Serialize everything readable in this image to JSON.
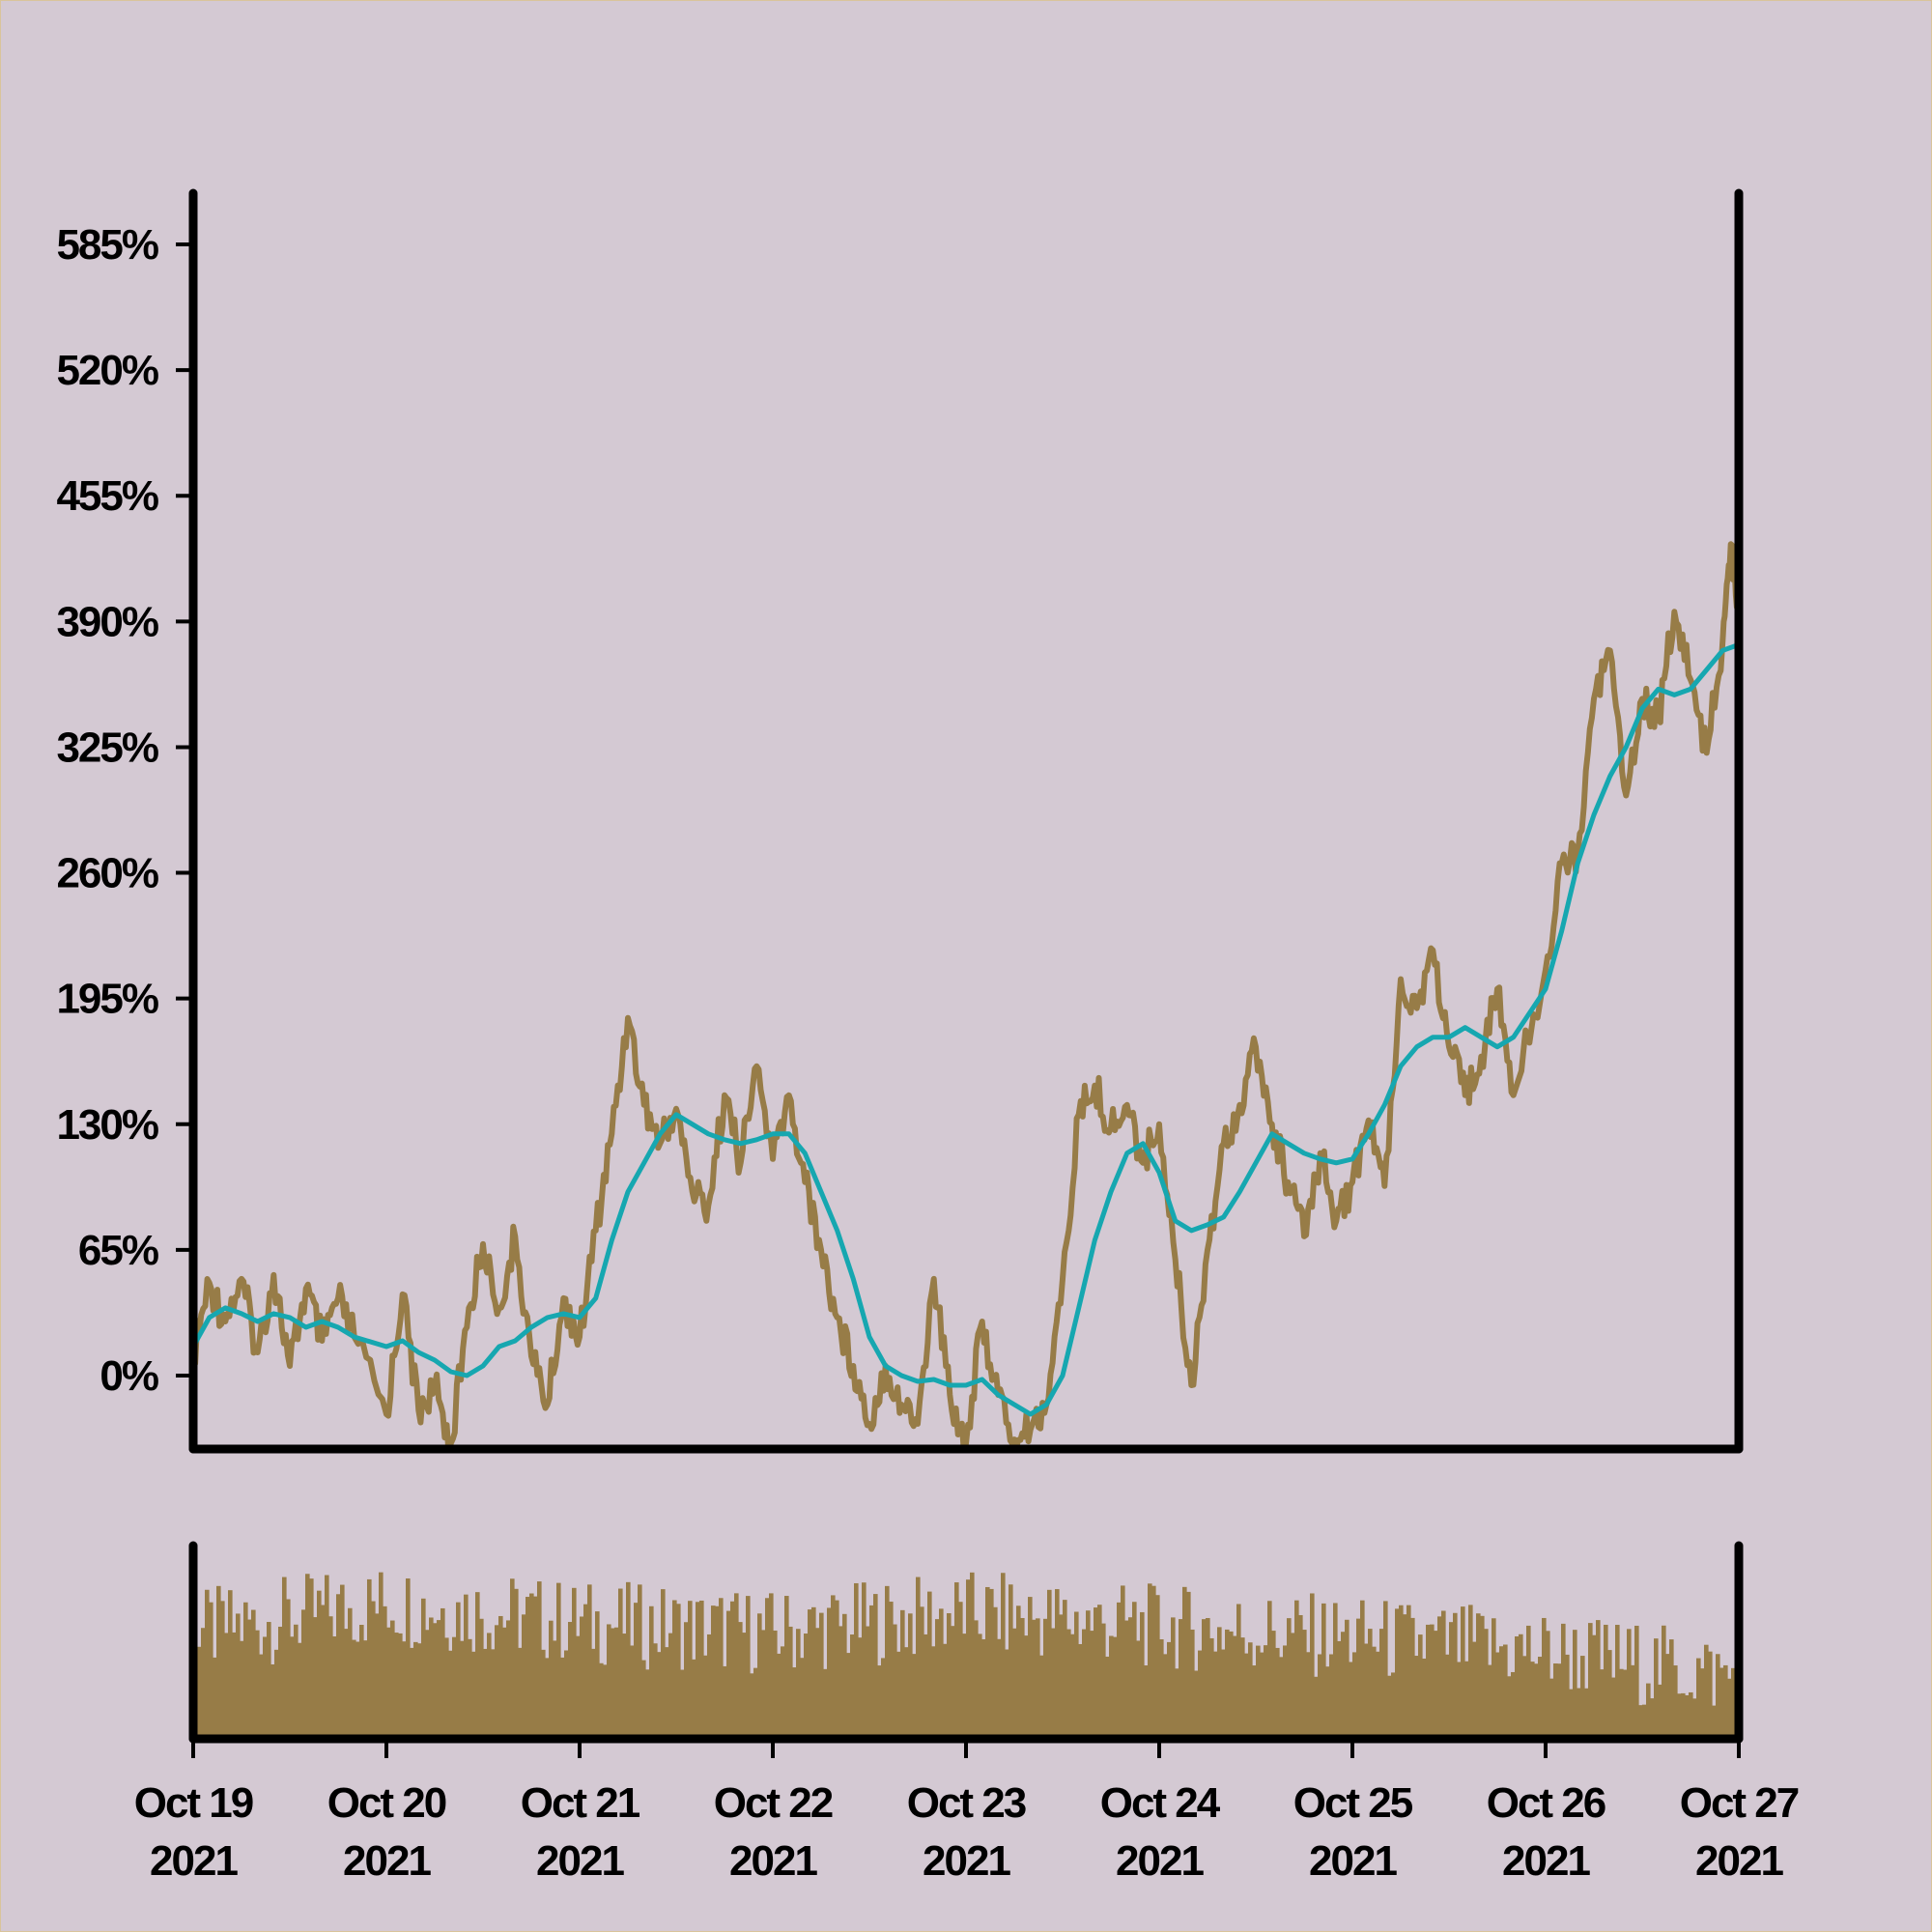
{
  "colors": {
    "background": "#d4c9d3",
    "price": "#977c47",
    "moving_average": "#16a7b0",
    "volume": "#977c47",
    "axis": "#000000"
  },
  "chart_data": [
    {
      "type": "line",
      "title": "",
      "xlabel": "",
      "ylabel": "",
      "y_tick_labels": [
        "0%",
        "65%",
        "130%",
        "195%",
        "260%",
        "325%",
        "390%",
        "455%",
        "520%",
        "585%"
      ],
      "y_ticks": [
        0,
        65,
        130,
        195,
        260,
        325,
        390,
        455,
        520,
        585
      ],
      "ylim": [
        -36,
        615
      ],
      "x_tick_labels": [
        {
          "month_day": "Oct 19",
          "year": "2021"
        },
        {
          "month_day": "Oct 20",
          "year": "2021"
        },
        {
          "month_day": "Oct 21",
          "year": "2021"
        },
        {
          "month_day": "Oct 22",
          "year": "2021"
        },
        {
          "month_day": "Oct 23",
          "year": "2021"
        },
        {
          "month_day": "Oct 24",
          "year": "2021"
        },
        {
          "month_day": "Oct 25",
          "year": "2021"
        },
        {
          "month_day": "Oct 26",
          "year": "2021"
        },
        {
          "month_day": "Oct 27",
          "year": "2021"
        }
      ],
      "x_range": [
        "2021-10-19",
        "2021-10-27"
      ],
      "grid": false,
      "series": [
        {
          "kind": "price",
          "points": [
            [
              "2021-10-19 00:00",
              10
            ],
            [
              "2021-10-19 02:00",
              48
            ],
            [
              "2021-10-19 04:00",
              28
            ],
            [
              "2021-10-19 06:00",
              50
            ],
            [
              "2021-10-19 08:00",
              12
            ],
            [
              "2021-10-19 10:00",
              52
            ],
            [
              "2021-10-19 12:00",
              5
            ],
            [
              "2021-10-19 14:00",
              45
            ],
            [
              "2021-10-19 16:00",
              18
            ],
            [
              "2021-10-19 18:00",
              40
            ],
            [
              "2021-10-19 20:00",
              20
            ],
            [
              "2021-10-20 00:00",
              -20
            ],
            [
              "2021-10-20 02:00",
              42
            ],
            [
              "2021-10-20 04:00",
              -18
            ],
            [
              "2021-10-20 06:00",
              -5
            ],
            [
              "2021-10-20 08:00",
              -35
            ],
            [
              "2021-10-20 10:00",
              25
            ],
            [
              "2021-10-20 12:00",
              68
            ],
            [
              "2021-10-20 14:00",
              35
            ],
            [
              "2021-10-20 16:00",
              72
            ],
            [
              "2021-10-20 18:00",
              10
            ],
            [
              "2021-10-20 20:00",
              -15
            ],
            [
              "2021-10-20 22:00",
              40
            ],
            [
              "2021-10-21 00:00",
              20
            ],
            [
              "2021-10-21 02:00",
              75
            ],
            [
              "2021-10-21 04:00",
              125
            ],
            [
              "2021-10-21 06:00",
              185
            ],
            [
              "2021-10-21 08:00",
              140
            ],
            [
              "2021-10-21 10:00",
              120
            ],
            [
              "2021-10-21 12:00",
              138
            ],
            [
              "2021-10-21 14:00",
              95
            ],
            [
              "2021-10-21 16:00",
              88
            ],
            [
              "2021-10-21 18:00",
              145
            ],
            [
              "2021-10-21 20:00",
              110
            ],
            [
              "2021-10-21 22:00",
              160
            ],
            [
              "2021-10-22 00:00",
              112
            ],
            [
              "2021-10-22 02:00",
              145
            ],
            [
              "2021-10-22 04:00",
              100
            ],
            [
              "2021-10-22 06:00",
              65
            ],
            [
              "2021-10-22 08:00",
              30
            ],
            [
              "2021-10-22 10:00",
              5
            ],
            [
              "2021-10-22 12:00",
              -25
            ],
            [
              "2021-10-22 14:00",
              5
            ],
            [
              "2021-10-22 16:00",
              -15
            ],
            [
              "2021-10-22 18:00",
              -25
            ],
            [
              "2021-10-22 20:00",
              50
            ],
            [
              "2021-10-22 22:00",
              -10
            ],
            [
              "2021-10-23 00:00",
              -35
            ],
            [
              "2021-10-23 02:00",
              28
            ],
            [
              "2021-10-23 04:00",
              -10
            ],
            [
              "2021-10-23 06:00",
              -33
            ],
            [
              "2021-10-23 08:00",
              -28
            ],
            [
              "2021-10-23 10:00",
              -15
            ],
            [
              "2021-10-23 12:00",
              50
            ],
            [
              "2021-10-23 14:00",
              135
            ],
            [
              "2021-10-23 16:00",
              150
            ],
            [
              "2021-10-23 18:00",
              128
            ],
            [
              "2021-10-23 20:00",
              140
            ],
            [
              "2021-10-23 22:00",
              110
            ],
            [
              "2021-10-24 00:00",
              130
            ],
            [
              "2021-10-24 02:00",
              60
            ],
            [
              "2021-10-24 04:00",
              -5
            ],
            [
              "2021-10-24 06:00",
              65
            ],
            [
              "2021-10-24 08:00",
              120
            ],
            [
              "2021-10-24 10:00",
              140
            ],
            [
              "2021-10-24 12:00",
              170
            ],
            [
              "2021-10-24 14:00",
              130
            ],
            [
              "2021-10-24 16:00",
              100
            ],
            [
              "2021-10-24 18:00",
              72
            ],
            [
              "2021-10-24 20:00",
              115
            ],
            [
              "2021-10-24 22:00",
              80
            ],
            [
              "2021-10-25 00:00",
              100
            ],
            [
              "2021-10-25 02:00",
              132
            ],
            [
              "2021-10-25 04:00",
              98
            ],
            [
              "2021-10-25 06:00",
              205
            ],
            [
              "2021-10-25 08:00",
              190
            ],
            [
              "2021-10-25 10:00",
              220
            ],
            [
              "2021-10-25 12:00",
              170
            ],
            [
              "2021-10-25 14:00",
              145
            ],
            [
              "2021-10-25 16:00",
              165
            ],
            [
              "2021-10-25 18:00",
              200
            ],
            [
              "2021-10-25 20:00",
              145
            ],
            [
              "2021-10-26 00:00",
              210
            ],
            [
              "2021-10-26 02:00",
              265
            ],
            [
              "2021-10-26 04:00",
              270
            ],
            [
              "2021-10-26 06:00",
              350
            ],
            [
              "2021-10-26 08:00",
              375
            ],
            [
              "2021-10-26 10:00",
              300
            ],
            [
              "2021-10-26 12:00",
              350
            ],
            [
              "2021-10-26 14:00",
              340
            ],
            [
              "2021-10-26 16:00",
              395
            ],
            [
              "2021-10-26 18:00",
              360
            ],
            [
              "2021-10-26 20:00",
              322
            ],
            [
              "2021-10-26 22:00",
              380
            ],
            [
              "2021-10-26 23:00",
              430
            ],
            [
              "2021-10-27 00:00",
              390
            ]
          ]
        },
        {
          "kind": "moving_average",
          "points": [
            [
              "2021-10-19 00:00",
              15
            ],
            [
              "2021-10-19 02:00",
              30
            ],
            [
              "2021-10-19 04:00",
              35
            ],
            [
              "2021-10-19 06:00",
              32
            ],
            [
              "2021-10-19 08:00",
              28
            ],
            [
              "2021-10-19 10:00",
              32
            ],
            [
              "2021-10-19 12:00",
              30
            ],
            [
              "2021-10-19 14:00",
              25
            ],
            [
              "2021-10-19 16:00",
              28
            ],
            [
              "2021-10-19 18:00",
              25
            ],
            [
              "2021-10-19 20:00",
              20
            ],
            [
              "2021-10-20 00:00",
              15
            ],
            [
              "2021-10-20 02:00",
              18
            ],
            [
              "2021-10-20 04:00",
              12
            ],
            [
              "2021-10-20 06:00",
              8
            ],
            [
              "2021-10-20 08:00",
              2
            ],
            [
              "2021-10-20 10:00",
              0
            ],
            [
              "2021-10-20 12:00",
              5
            ],
            [
              "2021-10-20 14:00",
              15
            ],
            [
              "2021-10-20 16:00",
              18
            ],
            [
              "2021-10-20 18:00",
              25
            ],
            [
              "2021-10-20 20:00",
              30
            ],
            [
              "2021-10-20 22:00",
              32
            ],
            [
              "2021-10-21 00:00",
              30
            ],
            [
              "2021-10-21 02:00",
              40
            ],
            [
              "2021-10-21 04:00",
              70
            ],
            [
              "2021-10-21 06:00",
              95
            ],
            [
              "2021-10-21 08:00",
              110
            ],
            [
              "2021-10-21 10:00",
              125
            ],
            [
              "2021-10-21 12:00",
              135
            ],
            [
              "2021-10-21 14:00",
              130
            ],
            [
              "2021-10-21 16:00",
              125
            ],
            [
              "2021-10-21 18:00",
              122
            ],
            [
              "2021-10-21 20:00",
              120
            ],
            [
              "2021-10-21 22:00",
              122
            ],
            [
              "2021-10-22 00:00",
              125
            ],
            [
              "2021-10-22 02:00",
              125
            ],
            [
              "2021-10-22 04:00",
              115
            ],
            [
              "2021-10-22 06:00",
              95
            ],
            [
              "2021-10-22 08:00",
              75
            ],
            [
              "2021-10-22 10:00",
              50
            ],
            [
              "2021-10-22 12:00",
              20
            ],
            [
              "2021-10-22 14:00",
              5
            ],
            [
              "2021-10-22 16:00",
              0
            ],
            [
              "2021-10-22 18:00",
              -3
            ],
            [
              "2021-10-22 20:00",
              -2
            ],
            [
              "2021-10-22 22:00",
              -5
            ],
            [
              "2021-10-23 00:00",
              -5
            ],
            [
              "2021-10-23 02:00",
              -2
            ],
            [
              "2021-10-23 04:00",
              -10
            ],
            [
              "2021-10-23 06:00",
              -15
            ],
            [
              "2021-10-23 08:00",
              -20
            ],
            [
              "2021-10-23 10:00",
              -15
            ],
            [
              "2021-10-23 12:00",
              0
            ],
            [
              "2021-10-23 14:00",
              35
            ],
            [
              "2021-10-23 16:00",
              70
            ],
            [
              "2021-10-23 18:00",
              95
            ],
            [
              "2021-10-23 20:00",
              115
            ],
            [
              "2021-10-23 22:00",
              120
            ],
            [
              "2021-10-24 00:00",
              105
            ],
            [
              "2021-10-24 02:00",
              80
            ],
            [
              "2021-10-24 04:00",
              75
            ],
            [
              "2021-10-24 06:00",
              78
            ],
            [
              "2021-10-24 08:00",
              82
            ],
            [
              "2021-10-24 10:00",
              95
            ],
            [
              "2021-10-24 12:00",
              110
            ],
            [
              "2021-10-24 14:00",
              125
            ],
            [
              "2021-10-24 16:00",
              120
            ],
            [
              "2021-10-24 18:00",
              115
            ],
            [
              "2021-10-24 20:00",
              112
            ],
            [
              "2021-10-24 22:00",
              110
            ],
            [
              "2021-10-25 00:00",
              112
            ],
            [
              "2021-10-25 02:00",
              125
            ],
            [
              "2021-10-25 04:00",
              140
            ],
            [
              "2021-10-25 06:00",
              160
            ],
            [
              "2021-10-25 08:00",
              170
            ],
            [
              "2021-10-25 10:00",
              175
            ],
            [
              "2021-10-25 12:00",
              175
            ],
            [
              "2021-10-25 14:00",
              180
            ],
            [
              "2021-10-25 16:00",
              175
            ],
            [
              "2021-10-25 18:00",
              170
            ],
            [
              "2021-10-25 20:00",
              175
            ],
            [
              "2021-10-26 00:00",
              200
            ],
            [
              "2021-10-26 02:00",
              230
            ],
            [
              "2021-10-26 04:00",
              265
            ],
            [
              "2021-10-26 06:00",
              290
            ],
            [
              "2021-10-26 08:00",
              310
            ],
            [
              "2021-10-26 10:00",
              325
            ],
            [
              "2021-10-26 12:00",
              345
            ],
            [
              "2021-10-26 14:00",
              355
            ],
            [
              "2021-10-26 16:00",
              352
            ],
            [
              "2021-10-26 18:00",
              355
            ],
            [
              "2021-10-26 20:00",
              365
            ],
            [
              "2021-10-26 22:00",
              375
            ],
            [
              "2021-10-27 00:00",
              378
            ]
          ]
        }
      ]
    },
    {
      "type": "bar",
      "title": "",
      "xlabel": "",
      "ylabel": "",
      "description_note_free": true,
      "x_range": [
        "2021-10-19",
        "2021-10-27"
      ],
      "ylim": [
        0,
        100
      ],
      "relative_volume_by_period": [
        {
          "start": "2021-10-19",
          "level": 55
        },
        {
          "start": "2021-10-20",
          "level": 70
        },
        {
          "start": "2021-10-21",
          "level": 60
        },
        {
          "start": "2021-10-22",
          "level": 55
        },
        {
          "start": "2021-10-23",
          "level": 65
        },
        {
          "start": "2021-10-24",
          "level": 58
        },
        {
          "start": "2021-10-25",
          "level": 52
        },
        {
          "start": "2021-10-26",
          "level": 45
        },
        {
          "start": "2021-10-27",
          "level": 32
        }
      ]
    }
  ]
}
